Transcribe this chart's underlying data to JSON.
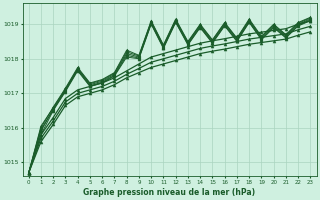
{
  "bg_color": "#cff0e0",
  "grid_color": "#aad4c0",
  "line_color": "#1a5c2a",
  "marker_color": "#1a5c2a",
  "xlabel": "Graphe pression niveau de la mer (hPa)",
  "xlim": [
    -0.5,
    23.5
  ],
  "ylim": [
    1014.6,
    1019.6
  ],
  "yticks": [
    1015,
    1016,
    1017,
    1018,
    1019
  ],
  "xticks": [
    0,
    1,
    2,
    3,
    4,
    5,
    6,
    7,
    8,
    9,
    10,
    11,
    12,
    13,
    14,
    15,
    16,
    17,
    18,
    19,
    20,
    21,
    22,
    23
  ],
  "smooth1": [
    1014.7,
    1015.6,
    1016.1,
    1016.65,
    1016.9,
    1017.0,
    1017.1,
    1017.25,
    1017.45,
    1017.6,
    1017.75,
    1017.85,
    1017.95,
    1018.05,
    1018.15,
    1018.22,
    1018.28,
    1018.35,
    1018.42,
    1018.47,
    1018.52,
    1018.57,
    1018.68,
    1018.78
  ],
  "smooth2": [
    1014.7,
    1015.7,
    1016.2,
    1016.75,
    1017.0,
    1017.1,
    1017.2,
    1017.35,
    1017.55,
    1017.72,
    1017.9,
    1018.0,
    1018.1,
    1018.2,
    1018.3,
    1018.37,
    1018.43,
    1018.5,
    1018.57,
    1018.62,
    1018.67,
    1018.72,
    1018.84,
    1018.94
  ],
  "smooth3": [
    1014.7,
    1015.8,
    1016.3,
    1016.85,
    1017.1,
    1017.2,
    1017.3,
    1017.45,
    1017.65,
    1017.85,
    1018.05,
    1018.15,
    1018.25,
    1018.35,
    1018.45,
    1018.52,
    1018.58,
    1018.65,
    1018.72,
    1018.77,
    1018.82,
    1018.87,
    1019.0,
    1019.1
  ],
  "osc1": [
    1014.7,
    1015.8,
    1016.5,
    1017.05,
    1017.65,
    1017.2,
    1017.3,
    1017.5,
    1018.05,
    1018.0,
    1019.0,
    1018.3,
    1019.05,
    1018.4,
    1018.9,
    1018.45,
    1018.95,
    1018.5,
    1019.05,
    1018.55,
    1018.9,
    1018.6,
    1018.95,
    1019.1
  ],
  "osc2": [
    1014.7,
    1015.9,
    1016.55,
    1017.1,
    1017.7,
    1017.25,
    1017.35,
    1017.55,
    1018.15,
    1018.05,
    1019.05,
    1018.35,
    1019.1,
    1018.45,
    1018.95,
    1018.5,
    1019.0,
    1018.55,
    1019.1,
    1018.6,
    1018.95,
    1018.65,
    1019.0,
    1019.15
  ],
  "osc3": [
    1014.7,
    1016.0,
    1016.6,
    1017.15,
    1017.75,
    1017.3,
    1017.4,
    1017.6,
    1018.25,
    1018.1,
    1019.1,
    1018.4,
    1019.15,
    1018.5,
    1019.0,
    1018.55,
    1019.05,
    1018.6,
    1019.15,
    1018.65,
    1019.0,
    1018.7,
    1019.05,
    1019.2
  ],
  "osc4": [
    1014.7,
    1015.95,
    1016.52,
    1017.08,
    1017.68,
    1017.22,
    1017.32,
    1017.52,
    1018.1,
    1018.02,
    1019.02,
    1018.32,
    1019.07,
    1018.42,
    1018.92,
    1018.47,
    1018.97,
    1018.52,
    1019.07,
    1018.57,
    1018.92,
    1018.62,
    1018.97,
    1019.12
  ],
  "osc5": [
    1014.7,
    1016.05,
    1016.58,
    1017.12,
    1017.72,
    1017.28,
    1017.38,
    1017.58,
    1018.2,
    1018.08,
    1019.08,
    1018.38,
    1019.12,
    1018.48,
    1018.98,
    1018.53,
    1019.03,
    1018.58,
    1019.12,
    1018.63,
    1018.98,
    1018.68,
    1019.03,
    1019.18
  ]
}
